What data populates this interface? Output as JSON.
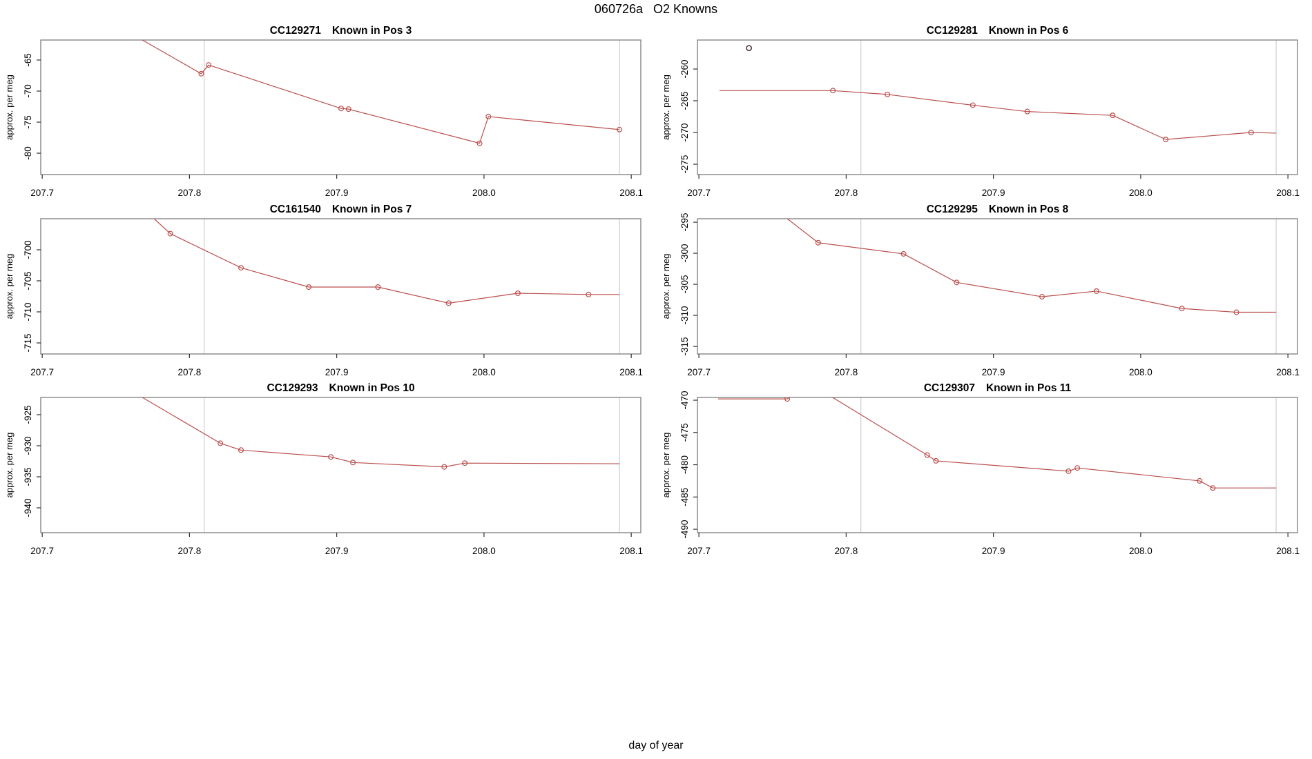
{
  "title": "060726a   O2 Knowns",
  "xlabel": "day of year",
  "colors": {
    "series": "#b94f4d",
    "outlier": "#3f2727",
    "gridline": "#cfcfcf",
    "box": "#7d7d7d",
    "tick": "#2e2e2e",
    "text": "#000000"
  },
  "chart_data": [
    {
      "type": "line",
      "id": "CC129271",
      "pos": "Known in Pos 3",
      "ylabel": "approx. per meg",
      "x_tick_values": [
        207.7,
        207.8,
        207.9,
        208.0,
        208.1
      ],
      "x_tick_labels": [
        "207.7",
        "207.8",
        "207.9",
        "208.0",
        "208.1"
      ],
      "y_ticks": [
        -65,
        -70,
        -75,
        -80
      ],
      "xlim": [
        207.699,
        208.1065
      ],
      "ylim": [
        -83.44,
        -61.78
      ],
      "vlines": [
        207.81,
        208.092
      ],
      "line": [
        [
          207.768,
          -61.78
        ],
        [
          207.808,
          -67.2
        ],
        [
          207.813,
          -65.8
        ],
        [
          207.903,
          -72.8
        ],
        [
          207.908,
          -72.9
        ],
        [
          207.997,
          -78.4
        ],
        [
          208.003,
          -74.1
        ],
        [
          208.092,
          -76.2
        ]
      ],
      "markers": [
        [
          207.808,
          -67.2
        ],
        [
          207.813,
          -65.8
        ],
        [
          207.903,
          -72.8
        ],
        [
          207.908,
          -72.9
        ],
        [
          207.997,
          -78.4
        ],
        [
          208.003,
          -74.1
        ],
        [
          208.092,
          -76.2
        ]
      ],
      "outliers": []
    },
    {
      "type": "line",
      "id": "CC129281",
      "pos": "Known in Pos 6",
      "ylabel": "approx. per meg",
      "x_tick_values": [
        207.7,
        207.8,
        207.9,
        208.0,
        208.1
      ],
      "x_tick_labels": [
        "207.7",
        "207.8",
        "207.9",
        "208.0",
        "208.1"
      ],
      "y_ticks": [
        -260,
        -265,
        -270,
        -275
      ],
      "xlim": [
        207.699,
        208.1065
      ],
      "ylim": [
        -276.63,
        -255.43
      ],
      "vlines": [
        207.81,
        208.092
      ],
      "line": [
        [
          207.714,
          -263.4
        ],
        [
          207.791,
          -263.4
        ],
        [
          207.828,
          -264.0
        ],
        [
          207.886,
          -265.7
        ],
        [
          207.923,
          -266.7
        ],
        [
          207.981,
          -267.3
        ],
        [
          208.017,
          -271.1
        ],
        [
          208.075,
          -270.0
        ],
        [
          208.092,
          -270.1
        ]
      ],
      "markers": [
        [
          207.791,
          -263.4
        ],
        [
          207.828,
          -264.0
        ],
        [
          207.886,
          -265.7
        ],
        [
          207.923,
          -266.7
        ],
        [
          207.981,
          -267.3
        ],
        [
          208.017,
          -271.1
        ],
        [
          208.075,
          -270.0
        ]
      ],
      "outliers": [
        [
          207.734,
          -256.7
        ]
      ]
    },
    {
      "type": "line",
      "id": "CC161540",
      "pos": "Known in Pos 7",
      "ylabel": "approx. per meg",
      "x_tick_values": [
        207.7,
        207.8,
        207.9,
        208.0,
        208.1
      ],
      "x_tick_labels": [
        "207.7",
        "207.8",
        "207.9",
        "208.0",
        "208.1"
      ],
      "y_ticks": [
        -700,
        -705,
        -710,
        -715
      ],
      "xlim": [
        207.699,
        208.1065
      ],
      "ylim": [
        -716.78,
        -695.0
      ],
      "vlines": [
        207.81,
        208.092
      ],
      "line": [
        [
          207.776,
          -695.0
        ],
        [
          207.787,
          -697.4
        ],
        [
          207.835,
          -702.9
        ],
        [
          207.881,
          -706.0
        ],
        [
          207.928,
          -706.0
        ],
        [
          207.976,
          -708.6
        ],
        [
          208.023,
          -707.0
        ],
        [
          208.071,
          -707.2
        ],
        [
          208.092,
          -707.2
        ]
      ],
      "markers": [
        [
          207.787,
          -697.4
        ],
        [
          207.835,
          -702.9
        ],
        [
          207.881,
          -706.0
        ],
        [
          207.928,
          -706.0
        ],
        [
          207.976,
          -708.6
        ],
        [
          208.023,
          -707.0
        ],
        [
          208.071,
          -707.2
        ]
      ],
      "outliers": []
    },
    {
      "type": "line",
      "id": "CC129295",
      "pos": "Known in Pos 8",
      "ylabel": "approx. per meg",
      "x_tick_values": [
        207.7,
        207.8,
        207.9,
        208.0,
        208.1
      ],
      "x_tick_labels": [
        "207.7",
        "207.8",
        "207.9",
        "208.0",
        "208.1"
      ],
      "y_ticks": [
        -295,
        -300,
        -305,
        -310,
        -315
      ],
      "xlim": [
        207.699,
        208.1065
      ],
      "ylim": [
        -316.22,
        -294.44
      ],
      "vlines": [
        207.81,
        208.092
      ],
      "line": [
        [
          207.76,
          -294.44
        ],
        [
          207.781,
          -298.3
        ],
        [
          207.839,
          -300.1
        ],
        [
          207.875,
          -304.7
        ],
        [
          207.933,
          -307.0
        ],
        [
          207.97,
          -306.1
        ],
        [
          208.028,
          -308.9
        ],
        [
          208.065,
          -309.5
        ],
        [
          208.092,
          -309.5
        ]
      ],
      "markers": [
        [
          207.781,
          -298.3
        ],
        [
          207.839,
          -300.1
        ],
        [
          207.875,
          -304.7
        ],
        [
          207.933,
          -307.0
        ],
        [
          207.97,
          -306.1
        ],
        [
          208.028,
          -308.9
        ],
        [
          208.065,
          -309.5
        ]
      ],
      "outliers": []
    },
    {
      "type": "line",
      "id": "CC129293",
      "pos": "Known in Pos 10",
      "ylabel": "approx. per meg",
      "x_tick_values": [
        207.7,
        207.8,
        207.9,
        208.0,
        208.1
      ],
      "x_tick_labels": [
        "207.7",
        "207.8",
        "207.9",
        "208.0",
        "208.1"
      ],
      "y_ticks": [
        -925,
        -930,
        -935,
        -940
      ],
      "xlim": [
        207.699,
        208.1065
      ],
      "ylim": [
        -944.0,
        -922.22
      ],
      "vlines": [
        207.81,
        208.092
      ],
      "line": [
        [
          207.768,
          -922.22
        ],
        [
          207.821,
          -929.6
        ],
        [
          207.835,
          -930.7
        ],
        [
          207.896,
          -931.8
        ],
        [
          207.911,
          -932.7
        ],
        [
          207.973,
          -933.4
        ],
        [
          207.987,
          -932.8
        ],
        [
          208.092,
          -932.9
        ]
      ],
      "markers": [
        [
          207.821,
          -929.6
        ],
        [
          207.835,
          -930.7
        ],
        [
          207.896,
          -931.8
        ],
        [
          207.911,
          -932.7
        ],
        [
          207.973,
          -933.4
        ],
        [
          207.987,
          -932.8
        ]
      ],
      "outliers": []
    },
    {
      "type": "line",
      "id": "CC129307",
      "pos": "Known in Pos 11",
      "ylabel": "approx. per meg",
      "x_tick_values": [
        207.7,
        207.8,
        207.9,
        208.0,
        208.1
      ],
      "x_tick_labels": [
        "207.7",
        "207.8",
        "207.9",
        "208.0",
        "208.1"
      ],
      "y_ticks": [
        -470,
        -475,
        -480,
        -485,
        -490
      ],
      "xlim": [
        207.699,
        208.1065
      ],
      "ylim": [
        -490.53,
        -469.57
      ],
      "vlines": [
        207.81,
        208.092
      ],
      "line": [
        [
          207.713,
          -469.8
        ],
        [
          207.76,
          -469.8
        ],
        [
          207.7745,
          -467.3
        ],
        [
          207.855,
          -478.5
        ],
        [
          207.861,
          -479.4
        ],
        [
          207.951,
          -481.0
        ],
        [
          207.957,
          -480.5
        ],
        [
          208.04,
          -482.5
        ],
        [
          208.049,
          -483.6
        ],
        [
          208.092,
          -483.6
        ]
      ],
      "markers": [
        [
          207.76,
          -469.8
        ],
        [
          207.855,
          -478.5
        ],
        [
          207.861,
          -479.4
        ],
        [
          207.951,
          -481.0
        ],
        [
          207.957,
          -480.5
        ],
        [
          208.04,
          -482.5
        ],
        [
          208.049,
          -483.6
        ]
      ],
      "outliers": []
    }
  ]
}
